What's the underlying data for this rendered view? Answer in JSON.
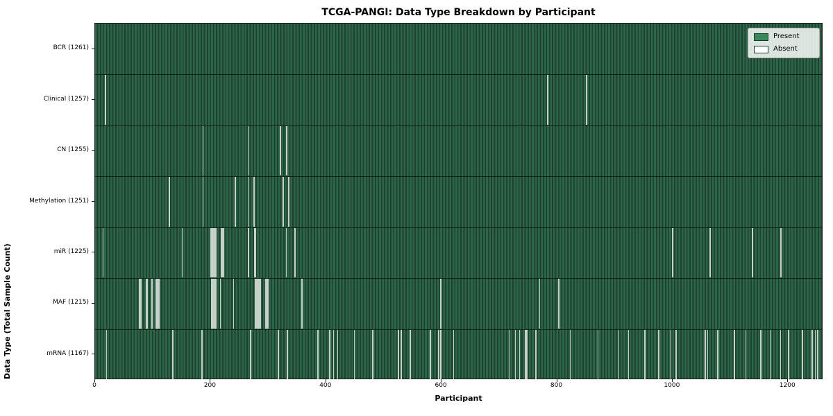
{
  "colors": {
    "present": "#35895a",
    "absent": "#ffffff",
    "plot_stripe_light": "#2e6448",
    "plot_stripe_dark": "#1e4230",
    "absent_line": "#dde1dd"
  },
  "chart_data": {
    "type": "heatmap",
    "title": "TCGA-PANGI: Data Type Breakdown by Participant",
    "xlabel": "Participant",
    "ylabel": "Data Type (Total Sample Count)",
    "x_range": [
      0,
      1261
    ],
    "x_ticks": [
      0,
      200,
      400,
      600,
      800,
      1000,
      1200
    ],
    "total_participants": 1261,
    "grid": false,
    "legend_position": "upper right",
    "legend": [
      {
        "label": "Present",
        "color": "#35895a"
      },
      {
        "label": "Absent",
        "color": "#ffffff"
      }
    ],
    "rows": [
      {
        "label": "BCR (1261)",
        "data_type": "BCR",
        "present_count": 1261,
        "absent_segments": []
      },
      {
        "label": "Clinical (1257)",
        "data_type": "Clinical",
        "present_count": 1257,
        "absent_segments": [
          [
            17,
            19
          ],
          [
            783,
            785
          ],
          [
            850,
            852
          ]
        ]
      },
      {
        "label": "CN (1255)",
        "data_type": "CN",
        "present_count": 1255,
        "absent_segments": [
          [
            186,
            188
          ],
          [
            264,
            266
          ],
          [
            320,
            322
          ],
          [
            330,
            333
          ]
        ]
      },
      {
        "label": "Methylation (1251)",
        "data_type": "Methylation",
        "present_count": 1251,
        "absent_segments": [
          [
            128,
            130
          ],
          [
            186,
            188
          ],
          [
            242,
            244
          ],
          [
            264,
            266
          ],
          [
            274,
            276
          ],
          [
            325,
            327
          ],
          [
            334,
            336
          ]
        ]
      },
      {
        "label": "miR (1225)",
        "data_type": "miR",
        "present_count": 1225,
        "absent_segments": [
          [
            13,
            15
          ],
          [
            150,
            152
          ],
          [
            200,
            210
          ],
          [
            217,
            223
          ],
          [
            264,
            267
          ],
          [
            275,
            279
          ],
          [
            330,
            332
          ],
          [
            345,
            347
          ],
          [
            999,
            1001
          ],
          [
            1064,
            1066
          ],
          [
            1137,
            1139
          ],
          [
            1186,
            1189
          ]
        ]
      },
      {
        "label": "MAF (1215)",
        "data_type": "MAF",
        "present_count": 1215,
        "absent_segments": [
          [
            76,
            80
          ],
          [
            88,
            91
          ],
          [
            97,
            100
          ],
          [
            105,
            112
          ],
          [
            201,
            210
          ],
          [
            216,
            218
          ],
          [
            239,
            241
          ],
          [
            277,
            287
          ],
          [
            294,
            301
          ],
          [
            357,
            359
          ],
          [
            598,
            600
          ],
          [
            769,
            771
          ],
          [
            802,
            804
          ]
        ]
      },
      {
        "label": "mRNA (1167)",
        "data_type": "mRNA",
        "present_count": 1167,
        "absent_segments": [
          [
            19,
            21
          ],
          [
            134,
            136
          ],
          [
            184,
            186
          ],
          [
            268,
            270
          ],
          [
            316,
            318
          ],
          [
            332,
            334
          ],
          [
            385,
            387
          ],
          [
            405,
            407
          ],
          [
            412,
            414
          ],
          [
            419,
            421
          ],
          [
            448,
            450
          ],
          [
            480,
            482
          ],
          [
            524,
            526
          ],
          [
            529,
            531
          ],
          [
            545,
            547
          ],
          [
            580,
            582
          ],
          [
            594,
            596
          ],
          [
            598,
            600
          ],
          [
            620,
            622
          ],
          [
            716,
            718
          ],
          [
            727,
            729
          ],
          [
            734,
            736
          ],
          [
            744,
            749
          ],
          [
            762,
            764
          ],
          [
            822,
            824
          ],
          [
            870,
            872
          ],
          [
            906,
            908
          ],
          [
            923,
            925
          ],
          [
            951,
            953
          ],
          [
            975,
            977
          ],
          [
            996,
            998
          ],
          [
            1005,
            1007
          ],
          [
            1055,
            1058
          ],
          [
            1060,
            1062
          ],
          [
            1077,
            1079
          ],
          [
            1106,
            1108
          ],
          [
            1126,
            1128
          ],
          [
            1152,
            1154
          ],
          [
            1168,
            1170
          ],
          [
            1186,
            1188
          ],
          [
            1200,
            1202
          ],
          [
            1224,
            1226
          ],
          [
            1240,
            1243
          ],
          [
            1246,
            1248
          ],
          [
            1250,
            1252
          ]
        ]
      }
    ]
  }
}
